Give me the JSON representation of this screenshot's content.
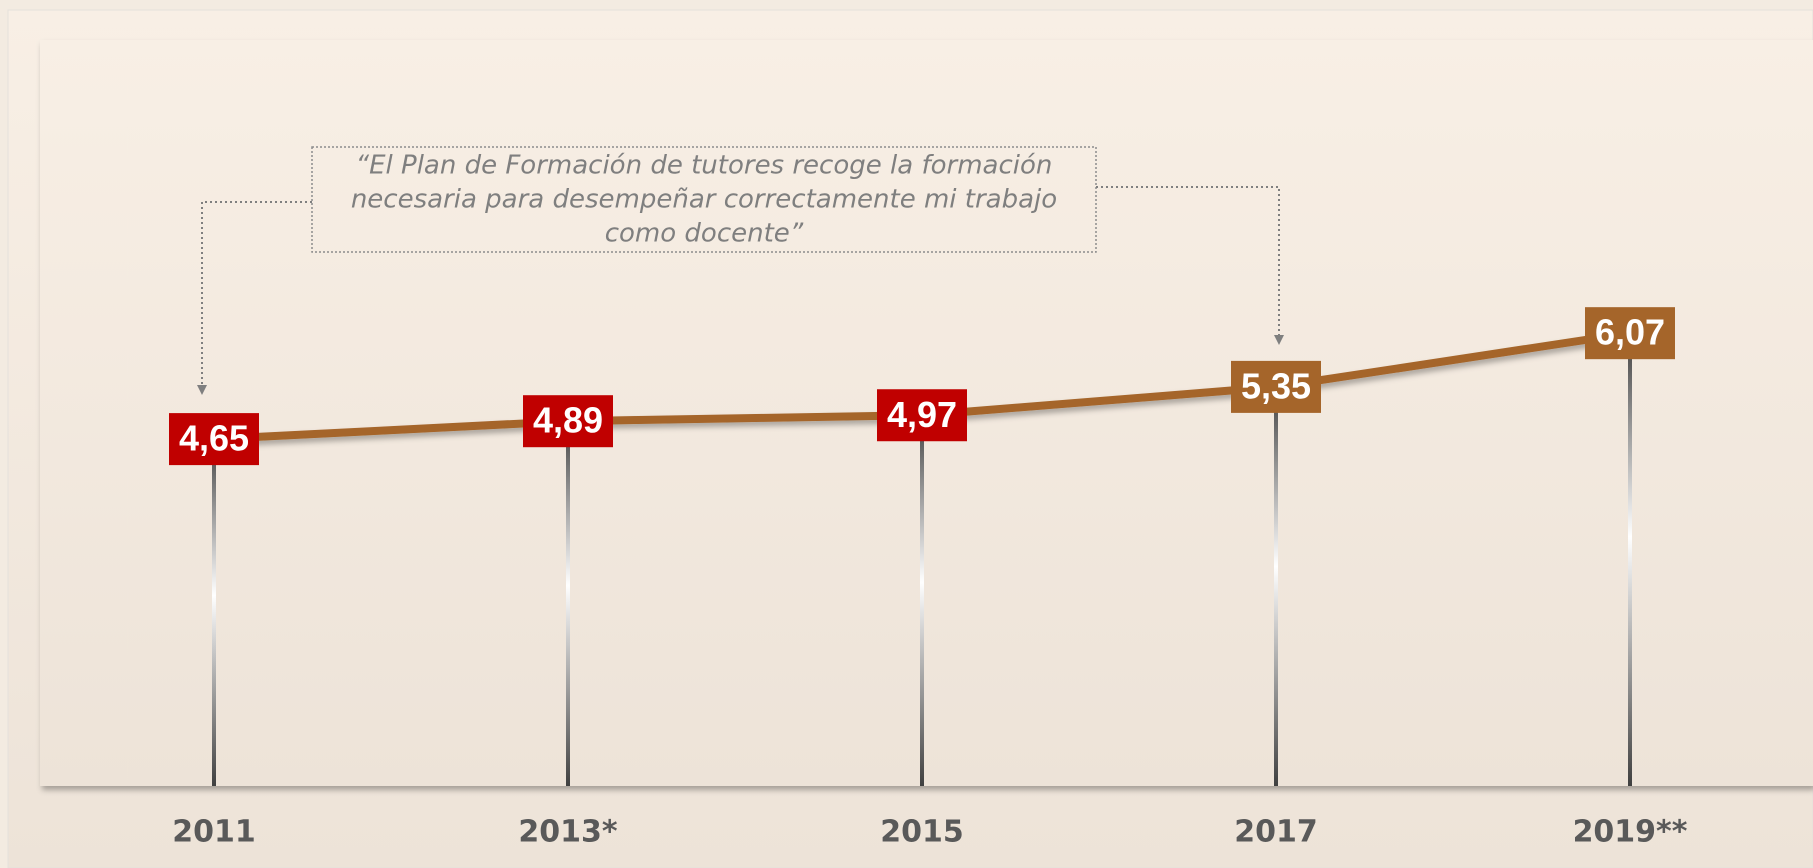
{
  "chart_data": {
    "type": "line",
    "categories": [
      "2011",
      "2013*",
      "2015",
      "2017",
      "2019**"
    ],
    "values": [
      4.65,
      4.89,
      4.97,
      5.35,
      6.07
    ],
    "value_labels": [
      "4,65",
      "4,89",
      "4,97",
      "5,35",
      "6,07"
    ],
    "label_colors": [
      "#c00000",
      "#c00000",
      "#c00000",
      "#a5652a",
      "#a5652a"
    ],
    "color": "#a5652a",
    "ylim": [
      0,
      10
    ],
    "annotation": [
      "“El Plan de Formación de tutores recoge la formación",
      "necesaria para desempeñar correctamente mi trabajo",
      "como docente”"
    ]
  }
}
